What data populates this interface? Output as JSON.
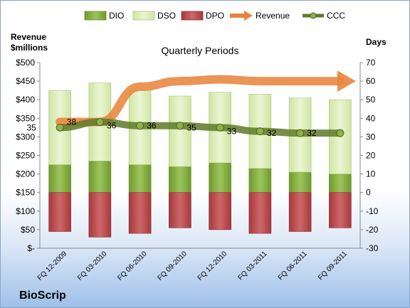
{
  "company": "BioScrip",
  "chart_data": {
    "type": "bar",
    "title": "Quarterly Periods",
    "left_axis_label": [
      "Revenue",
      "$millions"
    ],
    "right_axis_label": "Days",
    "categories": [
      "FQ 12-2009",
      "FQ 03-2010",
      "FQ 06-2010",
      "FQ 09-2010",
      "FQ 12-2010",
      "FQ 03-2011",
      "FQ 06-2011",
      "FQ 09-2011"
    ],
    "left_ticks": [
      "$-",
      "$50",
      "$100",
      "$150",
      "$200",
      "$250",
      "$300",
      "$350",
      "$400",
      "$450",
      "$500"
    ],
    "right_ticks": [
      "-30",
      "-20",
      "-10",
      "0",
      "10",
      "20",
      "30",
      "40",
      "50",
      "60",
      "70"
    ],
    "left_ylim": [
      0,
      500
    ],
    "right_ylim": [
      -30,
      70
    ],
    "series": [
      {
        "name": "DIO",
        "type": "stacked-bar",
        "axis": "right",
        "color": "#7ea83a",
        "values": [
          15,
          17,
          15,
          14,
          16,
          13,
          11,
          10
        ]
      },
      {
        "name": "DSO",
        "type": "stacked-bar",
        "axis": "right",
        "color": "#d9ecb0",
        "values": [
          40,
          42,
          40,
          38,
          38,
          40,
          40,
          40
        ]
      },
      {
        "name": "DPO",
        "type": "negative-bar",
        "axis": "right",
        "color": "#b8474a",
        "values": [
          -21,
          -24,
          -22,
          -19,
          -20,
          -22,
          -21,
          -19
        ]
      },
      {
        "name": "Revenue",
        "type": "line",
        "axis": "left",
        "color": "#e8853d",
        "values": [
          340,
          340,
          435,
          450,
          455,
          450,
          450,
          450
        ]
      },
      {
        "name": "CCC",
        "type": "line",
        "axis": "right",
        "color": "#5f7a2a",
        "values": [
          35,
          38,
          36,
          36,
          35,
          33,
          32,
          32
        ]
      }
    ],
    "ccc_labels": [
      "35",
      "38",
      "36",
      "36",
      "35",
      "33",
      "32",
      "32"
    ],
    "legend": [
      "DIO",
      "DSO",
      "DPO",
      "Revenue",
      "CCC"
    ],
    "legend_position": "top",
    "grid": false
  }
}
